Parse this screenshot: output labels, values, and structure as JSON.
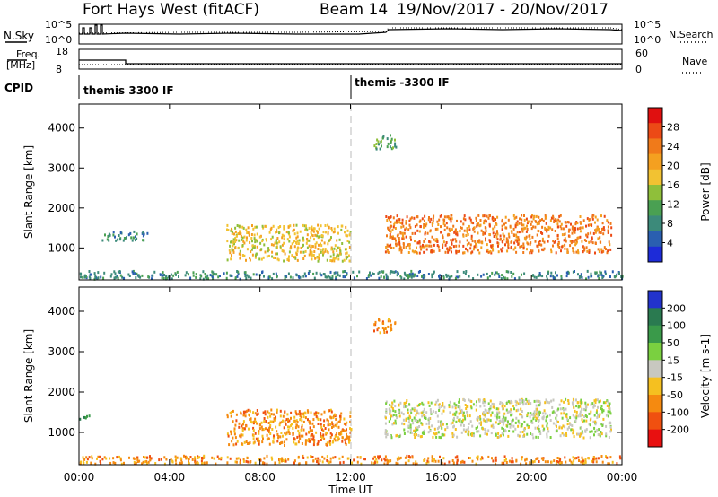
{
  "header": {
    "radar": "Fort Hays West (fitACF)",
    "beam": "Beam 14",
    "dates": "19/Nov/2017 - 20/Nov/2017"
  },
  "status_panels": {
    "nsky": {
      "label": "N.Sky",
      "tick_top": "10^5",
      "tick_bottom": "10^0"
    },
    "nsearch": {
      "label": "N.Search",
      "tick_top": "10^5",
      "tick_bottom": "10^0"
    },
    "freq": {
      "label": "Freq.",
      "unit": "[MHz]",
      "tick_top": "18",
      "tick_bottom": "8"
    },
    "nave": {
      "label": "Nave",
      "tick_top": "60",
      "tick_bottom": "0"
    },
    "cpid": {
      "label": "CPID",
      "segments": [
        "themis 3300 IF",
        "themis -3300 IF"
      ]
    }
  },
  "x_axis": {
    "label": "Time UT",
    "ticks": [
      "00:00",
      "04:00",
      "08:00",
      "12:00",
      "16:00",
      "20:00",
      "00:00"
    ],
    "range_hours": [
      0,
      24
    ]
  },
  "chart_data": [
    {
      "type": "heatmap",
      "name": "power",
      "ylabel": "Slant Range [km]",
      "ylim": [
        200,
        4600
      ],
      "yticks": [
        "1000",
        "2000",
        "3000",
        "4000"
      ],
      "colorbar": {
        "label": "Power [dB]",
        "ticks": [
          "4",
          "8",
          "12",
          "16",
          "20",
          "24",
          "28"
        ],
        "range": [
          0,
          30
        ],
        "colors": [
          "#1d2bd8",
          "#2a5fb0",
          "#3c8a7a",
          "#4aa052",
          "#8fbf3a",
          "#f2c232",
          "#f4a020",
          "#f07a1a",
          "#ec4a16",
          "#e01010"
        ]
      },
      "echo_regions": [
        {
          "t0": 1.0,
          "t1": 3.0,
          "r0": 1200,
          "r1": 1450,
          "power": 6
        },
        {
          "t0": 6.5,
          "t1": 12.0,
          "r0": 700,
          "r1": 1600,
          "power": 18
        },
        {
          "t0": 13.0,
          "t1": 14.0,
          "r0": 3500,
          "r1": 3850,
          "power": 10
        },
        {
          "t0": 13.5,
          "t1": 23.5,
          "r0": 900,
          "r1": 1850,
          "power": 22
        },
        {
          "t0": 0.0,
          "t1": 24.0,
          "r0": 250,
          "r1": 450,
          "power": 8
        }
      ]
    },
    {
      "type": "heatmap",
      "name": "velocity",
      "ylabel": "Slant Range [km]",
      "ylim": [
        200,
        4600
      ],
      "yticks": [
        "1000",
        "2000",
        "3000",
        "4000"
      ],
      "colorbar": {
        "label": "Velocity [m s-1]",
        "ticks": [
          "200",
          "100",
          "50",
          "15",
          "-15",
          "-50",
          "-100",
          "-200"
        ],
        "colors": [
          "#2233cc",
          "#2a7a50",
          "#3a9a4a",
          "#7ad040",
          "#c8c8c0",
          "#f5c020",
          "#f58a10",
          "#f05010",
          "#e81010"
        ]
      },
      "echo_regions": [
        {
          "t0": 0.0,
          "t1": 0.5,
          "r0": 1300,
          "r1": 1450,
          "velocity": 60
        },
        {
          "t0": 6.5,
          "t1": 12.0,
          "r0": 700,
          "r1": 1600,
          "velocity": -50
        },
        {
          "t0": 13.0,
          "t1": 14.0,
          "r0": 3500,
          "r1": 3850,
          "velocity": -60
        },
        {
          "t0": 13.5,
          "t1": 23.5,
          "r0": 900,
          "r1": 1850,
          "velocity": 0
        },
        {
          "t0": 0.0,
          "t1": 24.0,
          "r0": 250,
          "r1": 450,
          "velocity": -40
        }
      ]
    }
  ]
}
